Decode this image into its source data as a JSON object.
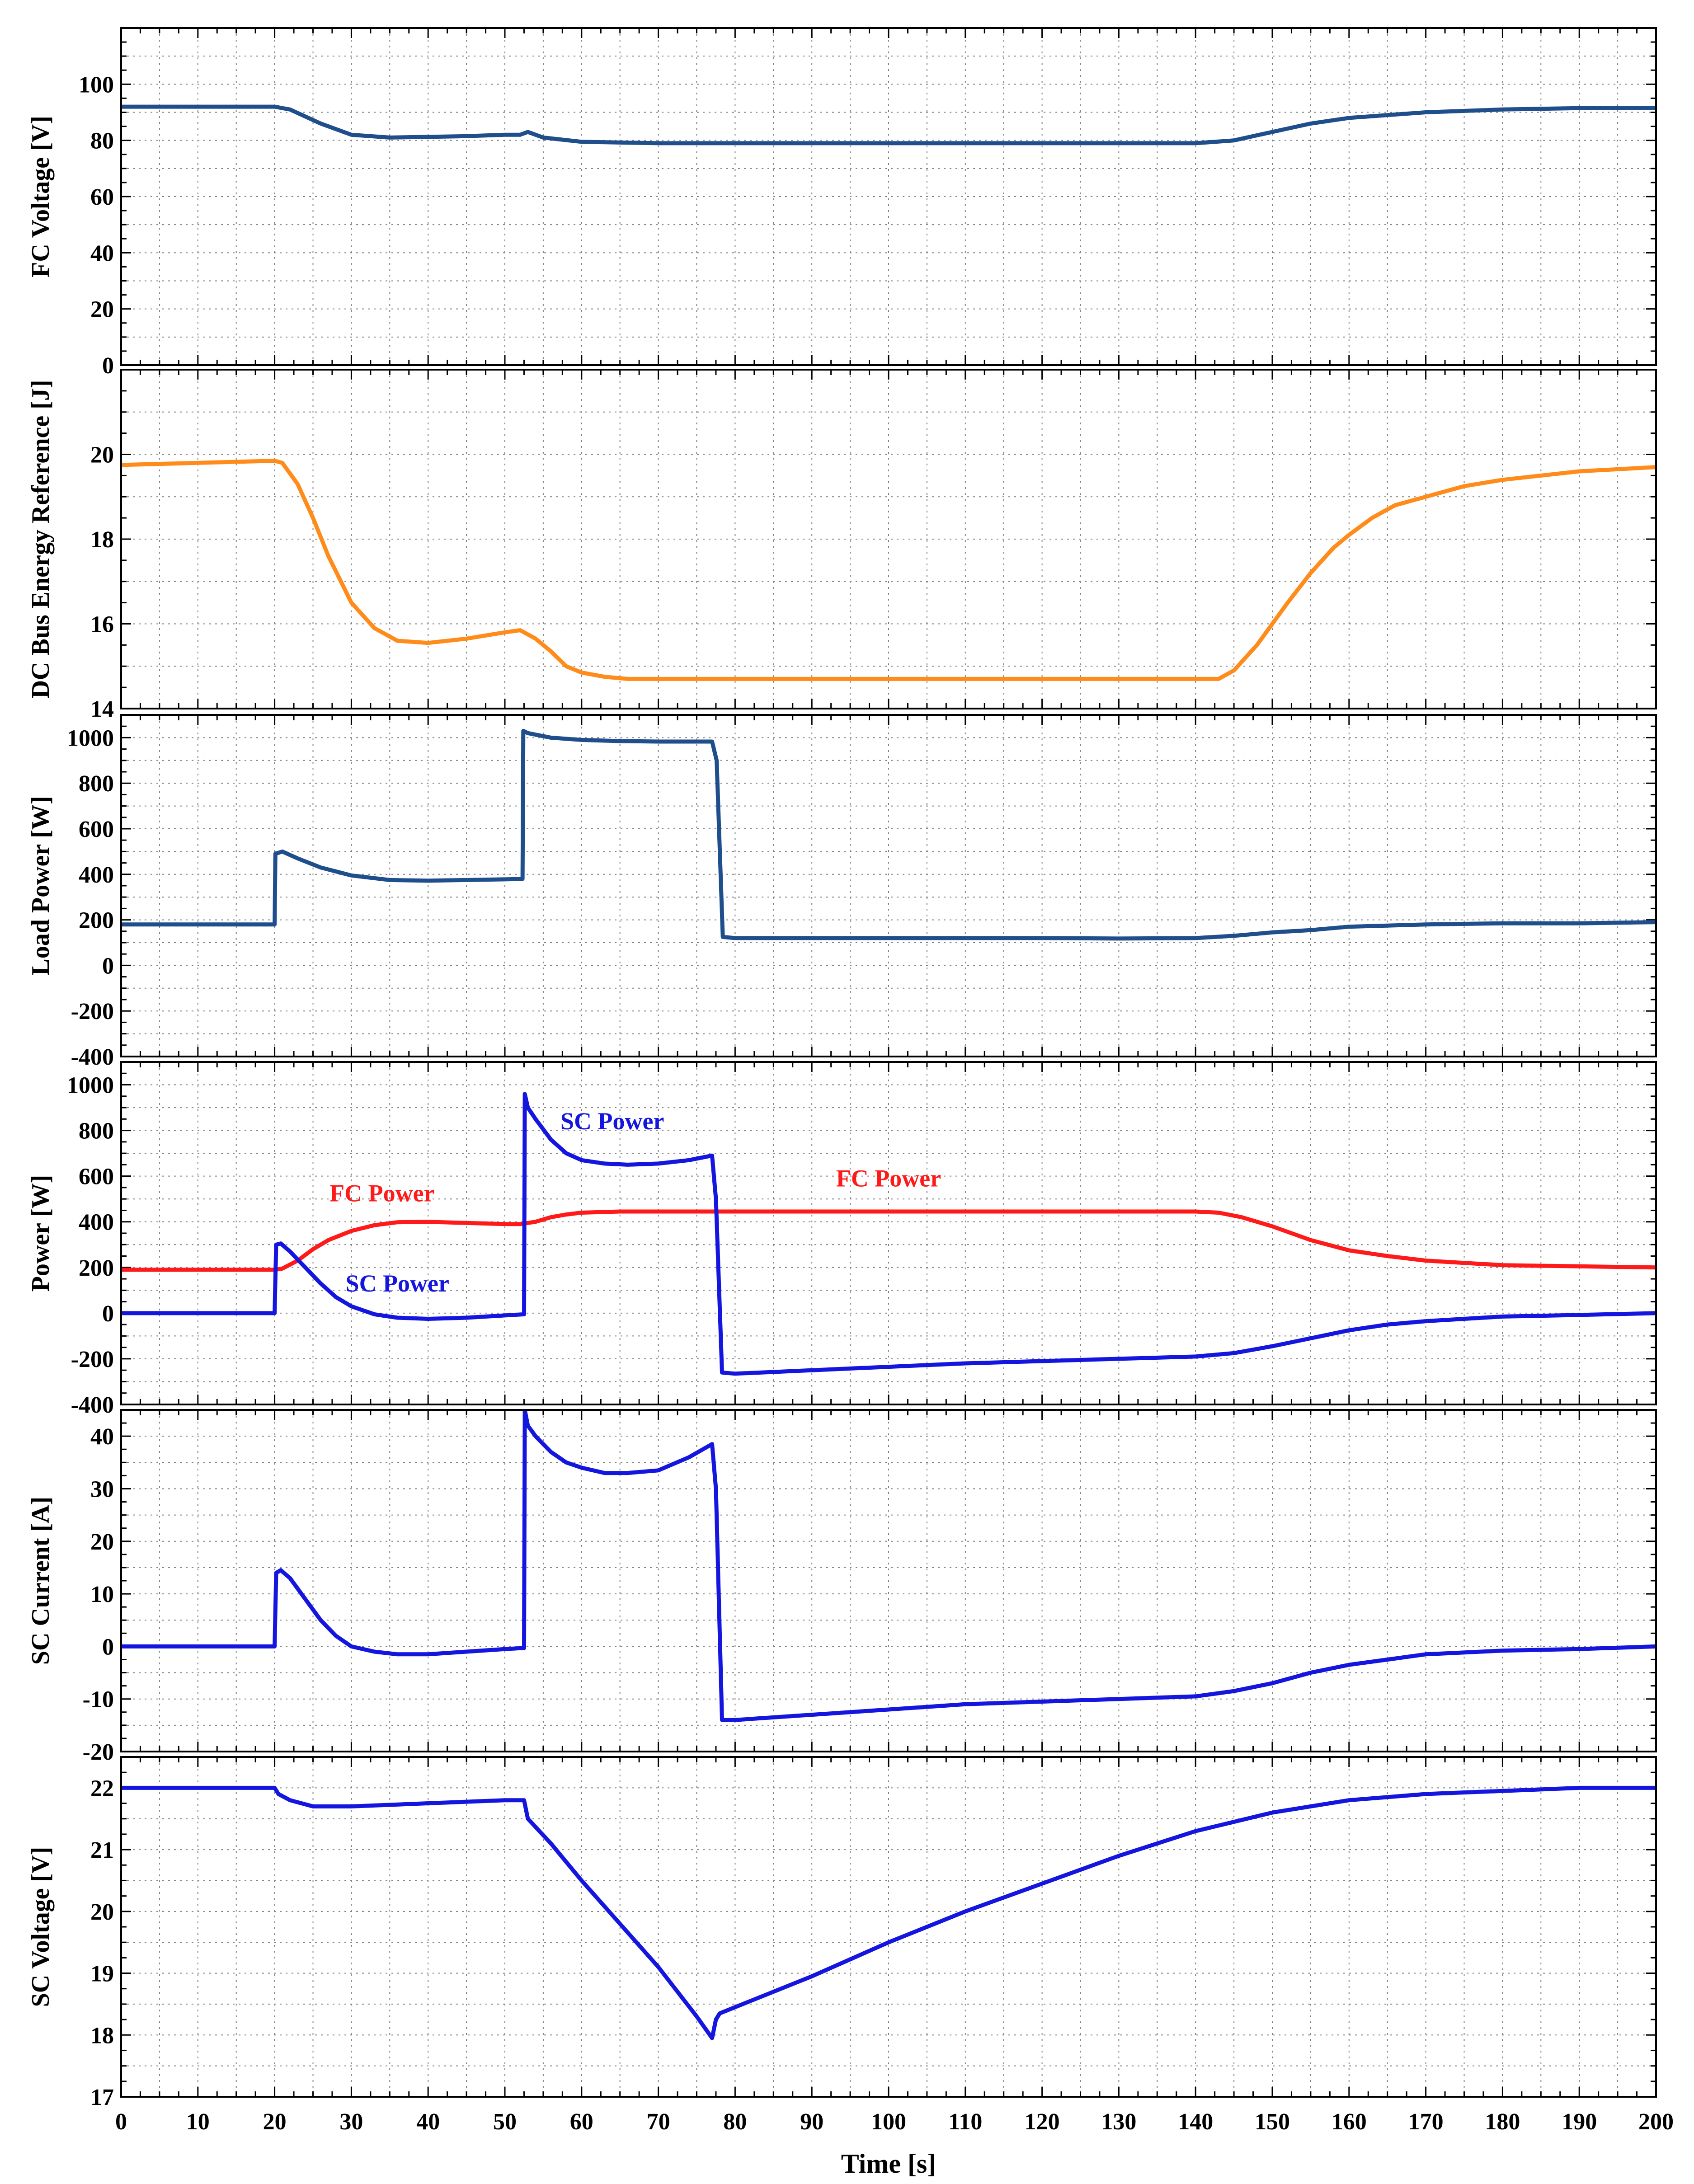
{
  "xaxis": {
    "label": "Time [s]",
    "range": [
      0,
      200
    ],
    "ticks": [
      0,
      10,
      20,
      30,
      40,
      50,
      60,
      70,
      80,
      90,
      100,
      110,
      120,
      130,
      140,
      150,
      160,
      170,
      180,
      190,
      200
    ]
  },
  "colors": {
    "navy": "#1f4e8c",
    "orange": "#ff8c1a",
    "blue": "#1515e0",
    "red": "#ff1a1a",
    "grid": "#808080"
  },
  "chart_data": [
    {
      "type": "line",
      "ylabel": "FC Voltage [V]",
      "ylim": [
        0,
        120
      ],
      "yticks": [
        0,
        20,
        40,
        60,
        80,
        100
      ],
      "grid": true,
      "series": [
        {
          "color": "#1f4e8c",
          "x": [
            0,
            20,
            22,
            26,
            30,
            35,
            45,
            50,
            52,
            53,
            55,
            60,
            70,
            80,
            100,
            120,
            140,
            145,
            150,
            155,
            160,
            170,
            180,
            190,
            200
          ],
          "y": [
            92,
            92,
            91,
            86,
            82,
            81,
            81.5,
            82,
            82,
            83,
            81,
            79.5,
            79,
            79,
            79,
            79,
            79,
            80,
            83,
            86,
            88,
            90,
            91,
            91.5,
            91.5
          ]
        }
      ]
    },
    {
      "type": "line",
      "ylabel": "DC Bus Energy Reference [J]",
      "ylim": [
        14,
        22
      ],
      "yticks": [
        14,
        16,
        18,
        20
      ],
      "grid": true,
      "series": [
        {
          "color": "#ff8c1a",
          "x": [
            0,
            10,
            20,
            21,
            23,
            25,
            27,
            30,
            33,
            36,
            40,
            45,
            50,
            52,
            54,
            56,
            58,
            60,
            63,
            66,
            70,
            80,
            100,
            120,
            140,
            143,
            145,
            148,
            150,
            152,
            155,
            158,
            160,
            163,
            166,
            170,
            175,
            180,
            190,
            200
          ],
          "y": [
            19.75,
            19.8,
            19.85,
            19.8,
            19.3,
            18.5,
            17.6,
            16.5,
            15.9,
            15.6,
            15.55,
            15.65,
            15.8,
            15.85,
            15.65,
            15.35,
            15.0,
            14.85,
            14.75,
            14.7,
            14.7,
            14.7,
            14.7,
            14.7,
            14.7,
            14.7,
            14.9,
            15.5,
            16.0,
            16.5,
            17.2,
            17.8,
            18.1,
            18.5,
            18.8,
            19.0,
            19.25,
            19.4,
            19.6,
            19.7
          ]
        }
      ]
    },
    {
      "type": "line",
      "ylabel": "Load Power [W]",
      "ylim": [
        -400,
        1100
      ],
      "yticks": [
        -400,
        -200,
        0,
        200,
        400,
        600,
        800,
        1000
      ],
      "grid": true,
      "series": [
        {
          "color": "#1f4e8c",
          "x": [
            0,
            20,
            20.1,
            21,
            23,
            26,
            30,
            35,
            40,
            45,
            50,
            52.3,
            52.4,
            53,
            56,
            60,
            65,
            70,
            77,
            77.6,
            78.4,
            80,
            90,
            100,
            110,
            120,
            130,
            140,
            145,
            150,
            155,
            160,
            170,
            180,
            190,
            200
          ],
          "y": [
            180,
            180,
            490,
            500,
            470,
            430,
            395,
            375,
            372,
            375,
            378,
            380,
            1030,
            1020,
            1000,
            990,
            985,
            983,
            983,
            900,
            125,
            120,
            120,
            120,
            120,
            120,
            118,
            120,
            130,
            145,
            155,
            170,
            180,
            185,
            185,
            190
          ]
        }
      ]
    },
    {
      "type": "line",
      "ylabel": "Power [W]",
      "ylim": [
        -400,
        1100
      ],
      "yticks": [
        -400,
        -200,
        0,
        200,
        400,
        600,
        800,
        1000
      ],
      "grid": true,
      "annotations": [
        {
          "text": "FC Power",
          "x": 34,
          "y": 490,
          "color": "#ff1a1a"
        },
        {
          "text": "FC Power",
          "x": 100,
          "y": 555,
          "color": "#ff1a1a"
        },
        {
          "text": "SC Power",
          "x": 64,
          "y": 805,
          "color": "#1515e0"
        },
        {
          "text": "SC Power",
          "x": 36,
          "y": 95,
          "color": "#1515e0"
        }
      ],
      "series": [
        {
          "color": "#ff1a1a",
          "x": [
            0,
            20,
            21,
            23,
            25,
            27,
            30,
            33,
            36,
            40,
            45,
            50,
            52,
            54,
            56,
            58,
            60,
            65,
            70,
            80,
            100,
            120,
            140,
            143,
            146,
            150,
            155,
            160,
            165,
            170,
            175,
            180,
            190,
            200
          ],
          "y": [
            190,
            190,
            195,
            230,
            280,
            320,
            360,
            385,
            398,
            400,
            395,
            390,
            390,
            400,
            420,
            432,
            440,
            445,
            445,
            445,
            445,
            445,
            445,
            440,
            420,
            380,
            320,
            275,
            250,
            230,
            220,
            210,
            205,
            200
          ]
        },
        {
          "color": "#1515e0",
          "x": [
            0,
            20,
            20.2,
            20.8,
            22,
            24,
            26,
            28,
            30,
            33,
            36,
            40,
            45,
            50,
            52.5,
            52.6,
            53,
            54,
            56,
            58,
            60,
            63,
            66,
            70,
            74,
            77,
            77.5,
            78.3,
            80,
            90,
            100,
            110,
            120,
            130,
            140,
            145,
            150,
            155,
            160,
            165,
            170,
            180,
            190,
            200
          ],
          "y": [
            0,
            0,
            300,
            305,
            270,
            200,
            130,
            70,
            30,
            -5,
            -20,
            -25,
            -20,
            -10,
            -5,
            960,
            900,
            850,
            760,
            700,
            670,
            655,
            650,
            655,
            670,
            690,
            500,
            -260,
            -265,
            -250,
            -235,
            -220,
            -210,
            -200,
            -190,
            -175,
            -145,
            -110,
            -75,
            -50,
            -35,
            -15,
            -8,
            0
          ]
        }
      ]
    },
    {
      "type": "line",
      "ylabel": "SC Current [A]",
      "ylim": [
        -20,
        45
      ],
      "yticks": [
        -20,
        -10,
        0,
        10,
        20,
        30,
        40
      ],
      "grid": true,
      "series": [
        {
          "color": "#1515e0",
          "x": [
            0,
            20,
            20.2,
            20.8,
            22,
            24,
            26,
            28,
            30,
            33,
            36,
            40,
            45,
            50,
            52.5,
            52.6,
            53,
            54,
            56,
            58,
            60,
            63,
            66,
            70,
            74,
            77,
            77.5,
            78.3,
            80,
            90,
            100,
            110,
            120,
            130,
            140,
            145,
            150,
            155,
            160,
            165,
            170,
            180,
            190,
            200
          ],
          "y": [
            0,
            0,
            14,
            14.5,
            13,
            9,
            5,
            2,
            0,
            -1,
            -1.5,
            -1.5,
            -1,
            -0.5,
            -0.3,
            45,
            42,
            40,
            37,
            35,
            34,
            33,
            33,
            33.5,
            36,
            38.5,
            30,
            -14,
            -14,
            -13,
            -12,
            -11,
            -10.5,
            -10,
            -9.5,
            -8.5,
            -7,
            -5,
            -3.5,
            -2.5,
            -1.5,
            -0.8,
            -0.5,
            0
          ]
        }
      ]
    },
    {
      "type": "line",
      "ylabel": "SC Voltage [V]",
      "ylim": [
        17,
        22.5
      ],
      "yticks": [
        17,
        18,
        19,
        20,
        21,
        22
      ],
      "grid": true,
      "series": [
        {
          "color": "#1515e0",
          "x": [
            0,
            20,
            20.5,
            22,
            25,
            30,
            40,
            50,
            52.5,
            53,
            56,
            60,
            65,
            70,
            75,
            77,
            77.5,
            78,
            80,
            90,
            100,
            110,
            120,
            130,
            140,
            150,
            160,
            170,
            180,
            190,
            200
          ],
          "y": [
            22,
            22,
            21.9,
            21.8,
            21.7,
            21.7,
            21.75,
            21.8,
            21.8,
            21.5,
            21.1,
            20.5,
            19.8,
            19.1,
            18.3,
            17.95,
            18.25,
            18.35,
            18.45,
            18.95,
            19.5,
            20.0,
            20.45,
            20.9,
            21.3,
            21.6,
            21.8,
            21.9,
            21.95,
            22,
            22
          ]
        }
      ]
    }
  ]
}
